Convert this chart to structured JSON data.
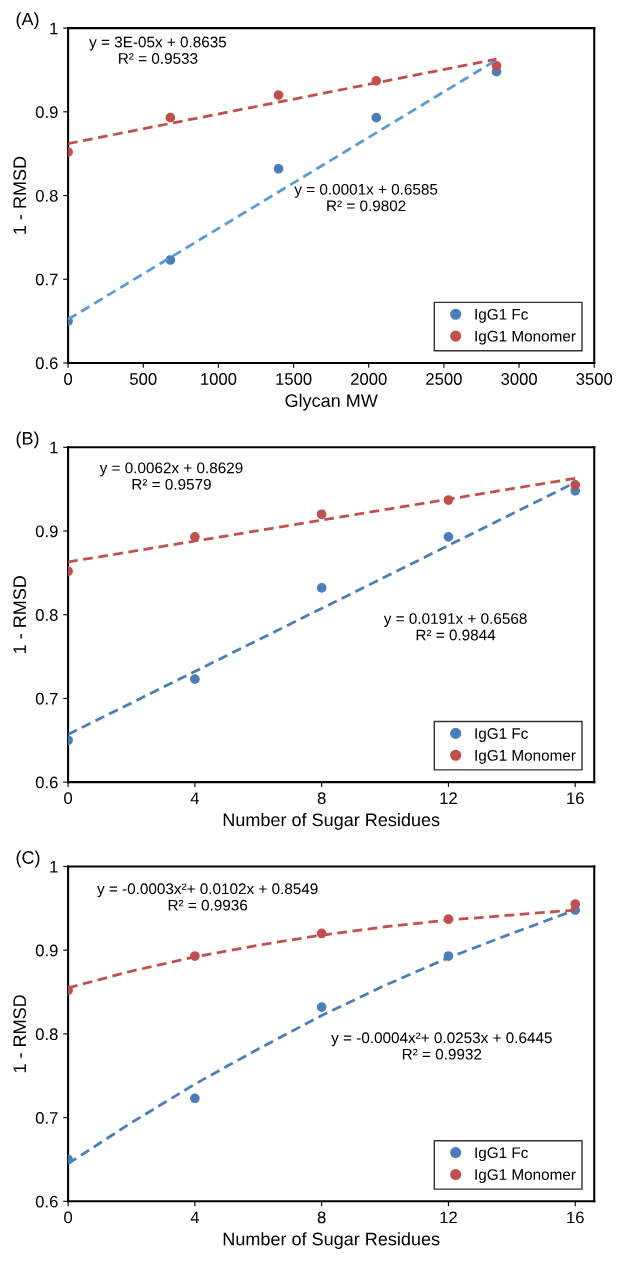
{
  "chart_data": [
    {
      "type": "scatter",
      "title": "(A)",
      "xlabel": "Glycan MW",
      "ylabel": "1 - RMSD",
      "xlim": [
        0,
        3500
      ],
      "xticks": [
        0,
        500,
        1000,
        1500,
        2000,
        2500,
        3000,
        3500
      ],
      "ylim": [
        0.6,
        1
      ],
      "yticks": [
        0.6,
        0.7,
        0.8,
        0.9,
        1
      ],
      "grid": false,
      "legend": "bottom right",
      "marker": "circle",
      "series": [
        {
          "name": "IgG1 Fc",
          "color": "#4a7ebb",
          "x": [
            0,
            680,
            1400,
            2050,
            2850
          ],
          "values": [
            0.65,
            0.723,
            0.832,
            0.893,
            0.948
          ]
        },
        {
          "name": "IgG1 Monomer",
          "color": "#c0504d",
          "x": [
            0,
            680,
            1400,
            2050,
            2850
          ],
          "values": [
            0.852,
            0.893,
            0.92,
            0.937,
            0.955
          ]
        },
        {
          "type": "line",
          "line_style": "dashed",
          "marker": "none",
          "color": "#5b9bd5",
          "x": [
            0,
            2850
          ],
          "values": [
            0.652,
            0.962
          ]
        },
        {
          "type": "line",
          "line_style": "dashed",
          "marker": "none",
          "color": "#c0504d",
          "x": [
            0,
            2850
          ],
          "values": [
            0.862,
            0.963
          ]
        }
      ],
      "annotations": [
        "y = 3E-05x + 0.8635\nR² = 0.9533",
        "y = 0.0001x + 0.6585\nR² = 0.9802"
      ]
    },
    {
      "type": "scatter",
      "title": "(B)",
      "xlabel": "Number of Sugar Residues",
      "ylabel": "1 - RMSD",
      "xlim": [
        0,
        16.6
      ],
      "xticks": [
        0,
        4,
        8,
        12,
        16
      ],
      "ylim": [
        0.6,
        1
      ],
      "yticks": [
        0.6,
        0.7,
        0.8,
        0.9,
        1
      ],
      "grid": false,
      "legend": "bottom right",
      "marker": "circle",
      "series": [
        {
          "name": "IgG1 Fc",
          "color": "#4a7ebb",
          "x": [
            0,
            4,
            8,
            12,
            16
          ],
          "values": [
            0.65,
            0.723,
            0.832,
            0.893,
            0.948
          ]
        },
        {
          "name": "IgG1 Monomer",
          "color": "#c0504d",
          "x": [
            0,
            4,
            8,
            12,
            16
          ],
          "values": [
            0.852,
            0.893,
            0.92,
            0.937,
            0.955
          ]
        },
        {
          "type": "line",
          "line_style": "dashed",
          "marker": "none",
          "color": "#4a7ebb",
          "x": [
            0,
            16
          ],
          "values": [
            0.657,
            0.958
          ]
        },
        {
          "type": "line",
          "line_style": "dashed",
          "marker": "none",
          "color": "#c0504d",
          "x": [
            0,
            16
          ],
          "values": [
            0.863,
            0.963
          ]
        }
      ],
      "annotations": [
        "y = 0.0062x + 0.8629\nR² = 0.9579",
        "y = 0.0191x + 0.6568\nR² = 0.9844"
      ]
    },
    {
      "type": "scatter",
      "title": "(C)",
      "xlabel": "Number of Sugar Residues",
      "ylabel": "1 - RMSD",
      "xlim": [
        0,
        16.6
      ],
      "xticks": [
        0,
        4,
        8,
        12,
        16
      ],
      "ylim": [
        0.6,
        1
      ],
      "yticks": [
        0.6,
        0.7,
        0.8,
        0.9,
        1
      ],
      "grid": false,
      "legend": "bottom right",
      "marker": "circle",
      "series": [
        {
          "name": "IgG1 Fc",
          "color": "#4a7ebb",
          "x": [
            0,
            4,
            8,
            12,
            16
          ],
          "values": [
            0.65,
            0.723,
            0.832,
            0.893,
            0.948
          ]
        },
        {
          "name": "IgG1 Monomer",
          "color": "#c0504d",
          "x": [
            0,
            4,
            8,
            12,
            16
          ],
          "values": [
            0.852,
            0.893,
            0.92,
            0.937,
            0.955
          ]
        },
        {
          "type": "line",
          "line_style": "dashed",
          "marker": "none",
          "color": "#4a7ebb",
          "x": [
            0,
            2,
            4,
            6,
            8,
            10,
            12,
            14,
            16
          ],
          "values": [
            0.645,
            0.694,
            0.74,
            0.782,
            0.822,
            0.858,
            0.891,
            0.92,
            0.948
          ]
        },
        {
          "type": "line",
          "line_style": "dashed",
          "marker": "none",
          "color": "#c0504d",
          "x": [
            0,
            2,
            4,
            6,
            8,
            10,
            12,
            14,
            16
          ],
          "values": [
            0.855,
            0.875,
            0.892,
            0.906,
            0.918,
            0.928,
            0.936,
            0.942,
            0.948
          ]
        }
      ],
      "annotations": [
        "y = -0.0003x²+ 0.0102x + 0.8549\nR² = 0.9936",
        "y = -0.0004x²+ 0.0253x + 0.6445\nR² = 0.9932"
      ]
    }
  ]
}
